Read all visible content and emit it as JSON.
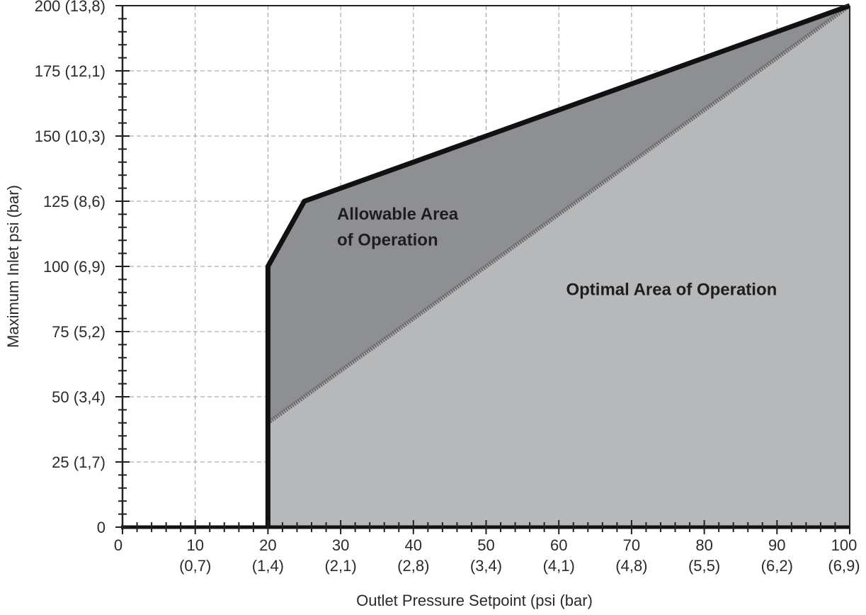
{
  "chart_data": {
    "type": "area",
    "xlabel": "Outlet Pressure Setpoint (psi (bar)",
    "ylabel": "Maximum Inlet psi (bar)",
    "xlim": [
      0,
      100
    ],
    "ylim": [
      0,
      200
    ],
    "grid": true,
    "x_ticks": [
      {
        "value": 0,
        "label": "0",
        "sub": ""
      },
      {
        "value": 10,
        "label": "10",
        "sub": "(0,7)"
      },
      {
        "value": 20,
        "label": "20",
        "sub": "(1,4)"
      },
      {
        "value": 30,
        "label": "30",
        "sub": "(2,1)"
      },
      {
        "value": 40,
        "label": "40",
        "sub": "(2,8)"
      },
      {
        "value": 50,
        "label": "50",
        "sub": "(3,4)"
      },
      {
        "value": 60,
        "label": "60",
        "sub": "(4,1)"
      },
      {
        "value": 70,
        "label": "70",
        "sub": "(4,8)"
      },
      {
        "value": 80,
        "label": "80",
        "sub": "(5,5)"
      },
      {
        "value": 90,
        "label": "90",
        "sub": "(6,2)"
      },
      {
        "value": 100,
        "label": "100",
        "sub": "(6,9)"
      }
    ],
    "y_ticks": [
      {
        "value": 0,
        "label": "0"
      },
      {
        "value": 25,
        "label": "25 (1,7)"
      },
      {
        "value": 50,
        "label": "50 (3,4)"
      },
      {
        "value": 75,
        "label": "75 (5,2)"
      },
      {
        "value": 100,
        "label": "100 (6,9)"
      },
      {
        "value": 125,
        "label": "125 (8,6)"
      },
      {
        "value": 150,
        "label": "150 (10,3)"
      },
      {
        "value": 175,
        "label": "175 (12,1)"
      },
      {
        "value": 200,
        "label": "200 (13,8)"
      }
    ],
    "series": [
      {
        "name": "Allowable Area of Operation",
        "color": "#8e8f92",
        "points": [
          [
            20,
            0
          ],
          [
            20,
            100
          ],
          [
            25,
            125
          ],
          [
            100,
            200
          ],
          [
            100,
            0
          ]
        ]
      },
      {
        "name": "Optimal Area of Operation",
        "color": "#b7b8ba",
        "points": [
          [
            20,
            0
          ],
          [
            20,
            40
          ],
          [
            100,
            200
          ],
          [
            100,
            0
          ]
        ]
      }
    ],
    "annotations": [
      {
        "text": "Allowable Area",
        "x": 29.5,
        "y": 118
      },
      {
        "text": "of Operation",
        "x": 29.5,
        "y": 108
      },
      {
        "text": "Optimal Area of Operation",
        "x": 61,
        "y": 89
      }
    ]
  }
}
